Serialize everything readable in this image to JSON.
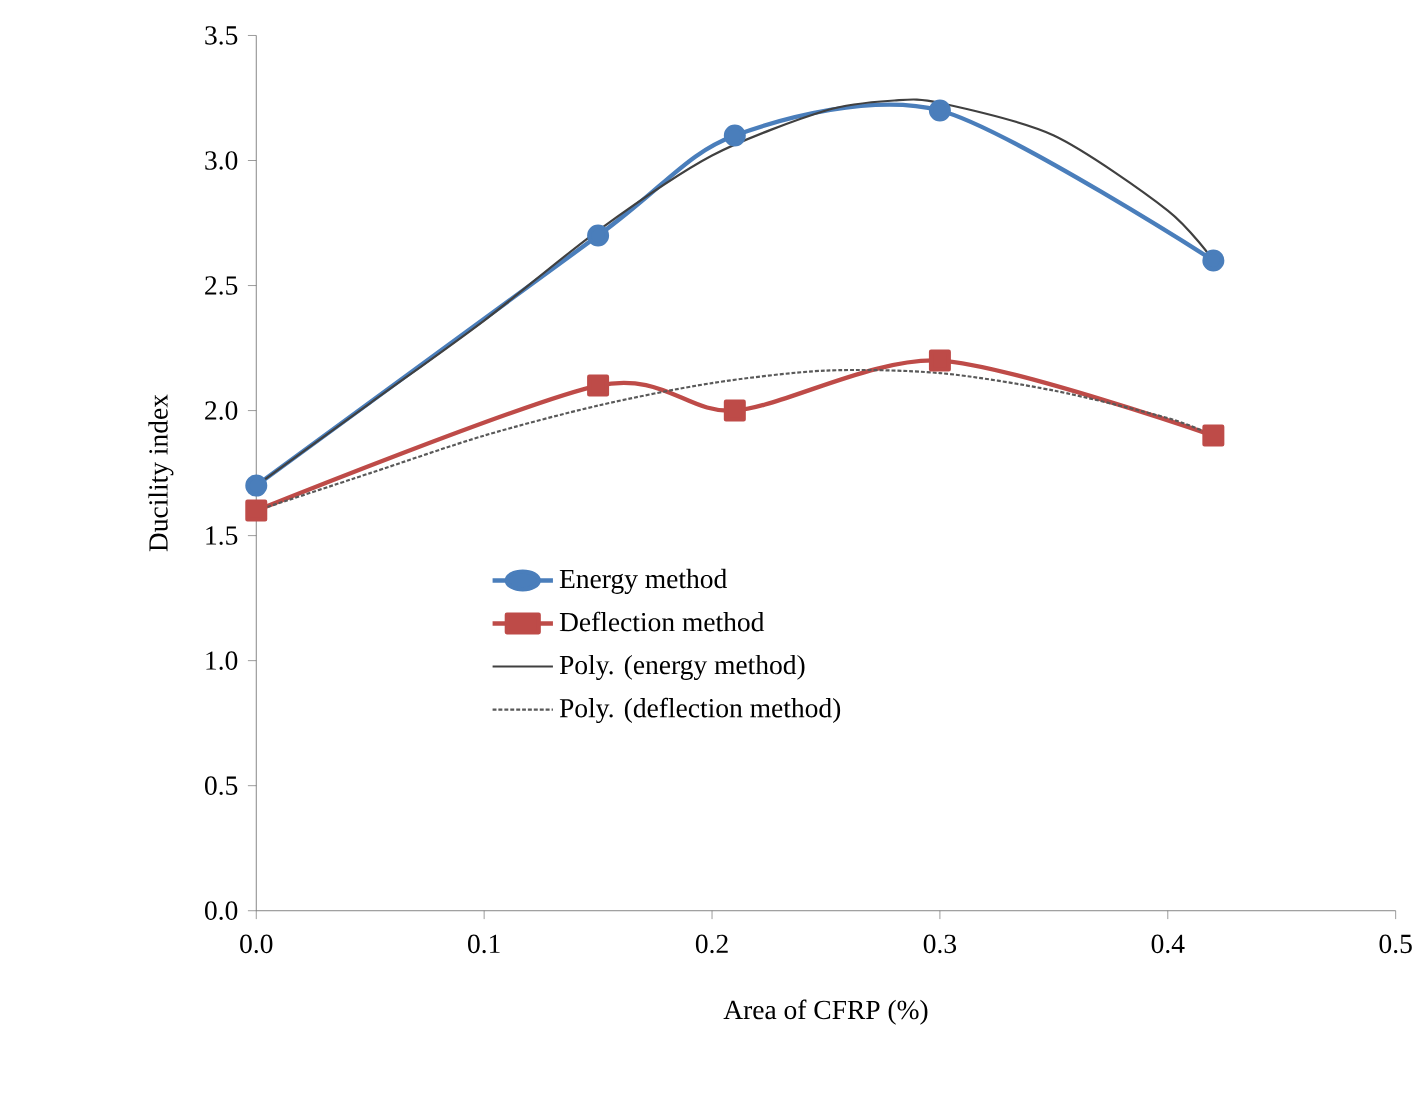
{
  "chart_data": {
    "type": "line",
    "xlabel": "Area of CFRP (%)",
    "ylabel": "Ducility index",
    "xlim": [
      0,
      0.5
    ],
    "ylim": [
      0,
      3.5
    ],
    "xticks": [
      {
        "value": 0,
        "label": "0.0"
      },
      {
        "value": 0.1,
        "label": "0.1"
      },
      {
        "value": 0.2,
        "label": "0.2"
      },
      {
        "value": 0.3,
        "label": "0.3"
      },
      {
        "value": 0.4,
        "label": "0.4"
      },
      {
        "value": 0.5,
        "label": "0.5"
      }
    ],
    "yticks": [
      {
        "value": 0,
        "label": "0.0"
      },
      {
        "value": 0.5,
        "label": "0.5"
      },
      {
        "value": 1,
        "label": "1.0"
      },
      {
        "value": 1.5,
        "label": "1.5"
      },
      {
        "value": 2,
        "label": "2.0"
      },
      {
        "value": 2.5,
        "label": "2.5"
      },
      {
        "value": 3,
        "label": "3.0"
      },
      {
        "value": 3.5,
        "label": "3.5"
      }
    ],
    "grid": false,
    "legend": "bottom",
    "series": [
      {
        "name": "Energy method",
        "color": "#4a7ebb",
        "marker": "circle",
        "line_style": "solid",
        "x": [
          0,
          0.15,
          0.21,
          0.3,
          0.42
        ],
        "values": [
          1.7,
          2.7,
          3.1,
          3.2,
          2.6
        ]
      },
      {
        "name": "Deflection method",
        "color": "#be4b48",
        "marker": "square",
        "line_style": "solid",
        "x": [
          0,
          0.15,
          0.21,
          0.3,
          0.42
        ],
        "values": [
          1.6,
          2.1,
          2.0,
          2.2,
          1.9
        ]
      },
      {
        "name": "Poly. (energy method)",
        "color": "#404040",
        "marker": "none",
        "line_style": "solid",
        "x": [
          0,
          0.05,
          0.1,
          0.15,
          0.2,
          0.25,
          0.28,
          0.3,
          0.35,
          0.4,
          0.42
        ],
        "values": [
          1.7,
          2.03,
          2.36,
          2.72,
          3.02,
          3.2,
          3.24,
          3.23,
          3.1,
          2.8,
          2.6
        ]
      },
      {
        "name": "Poly. (deflection method)",
        "color": "#595959",
        "marker": "none",
        "line_style": "dotted",
        "x": [
          0,
          0.05,
          0.1,
          0.15,
          0.2,
          0.25,
          0.3,
          0.35,
          0.4,
          0.42
        ],
        "values": [
          1.6,
          1.75,
          1.9,
          2.02,
          2.11,
          2.16,
          2.15,
          2.08,
          1.97,
          1.9
        ]
      }
    ]
  }
}
